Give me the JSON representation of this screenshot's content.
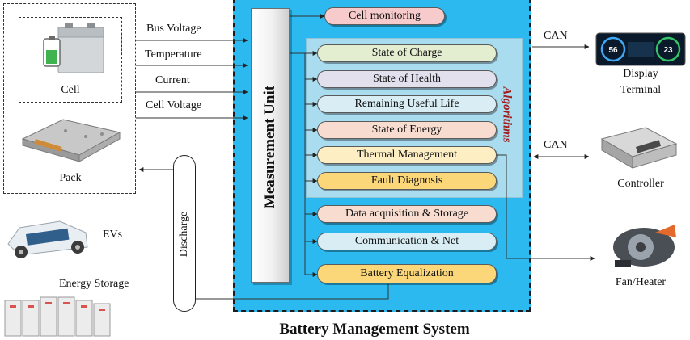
{
  "title": "Battery Management System",
  "measurement_unit": "Measurement Unit",
  "algorithms_label": "Algorithms",
  "inputs": [
    {
      "label": "Bus Voltage"
    },
    {
      "label": "Temperature"
    },
    {
      "label": "Current"
    },
    {
      "label": "Cell Voltage"
    }
  ],
  "source": {
    "cell_label": "Cell",
    "pack_label": "Pack"
  },
  "functions": {
    "top": {
      "label": "Cell monitoring",
      "fill": "#f7cbcb"
    },
    "algorithms": [
      {
        "label": "State of Charge",
        "fill": "#e3edcf"
      },
      {
        "label": "State of Health",
        "fill": "#e3e0ee"
      },
      {
        "label": "Remaining Useful Life",
        "fill": "#d9eef4"
      },
      {
        "label": "State of Energy",
        "fill": "#f7dccf"
      },
      {
        "label": "Thermal Management",
        "fill": "#fdeec4"
      },
      {
        "label": "Fault Diagnosis",
        "fill": "#fcd77a"
      }
    ],
    "others": [
      {
        "label": "Data acquisition & Storage",
        "fill": "#f7dccf"
      },
      {
        "label": "Communication & Net",
        "fill": "#d9eef4"
      },
      {
        "label": "Battery Equalization",
        "fill": "#fcd77a"
      }
    ]
  },
  "outputs": {
    "display": {
      "link": "CAN",
      "label_line1": "Display",
      "label_line2": "Terminal",
      "gauge_left": "56",
      "gauge_right": "23"
    },
    "controller": {
      "link": "CAN",
      "label": "Controller"
    },
    "fan": {
      "label": "Fan/Heater"
    }
  },
  "discharge": {
    "label": "Discharge"
  },
  "applications": [
    {
      "label": "EVs"
    },
    {
      "label": "Energy Storage"
    }
  ],
  "colors": {
    "panel": "#2bb9ef",
    "algorithms_panel": "#a9dcee",
    "algorithms_text": "#a41c1c"
  }
}
